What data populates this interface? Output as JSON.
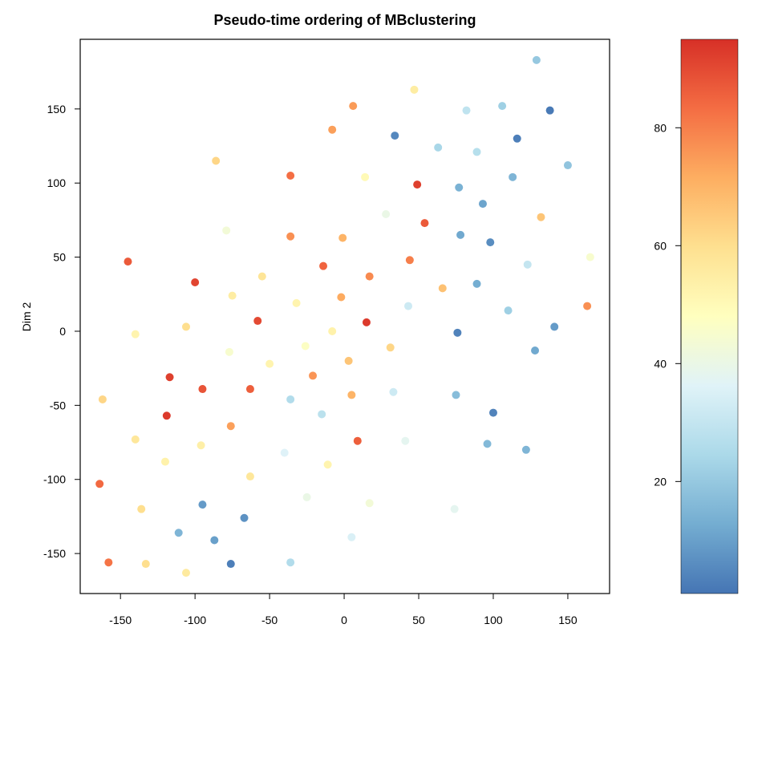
{
  "chart_data": {
    "type": "scatter",
    "title": "Pseudo-time ordering of MBclustering",
    "xlabel": "",
    "ylabel": "Dim 2",
    "xlim": [
      -177,
      178
    ],
    "ylim": [
      -177,
      197
    ],
    "xticks": [
      -150,
      -100,
      -50,
      0,
      50,
      100,
      150
    ],
    "yticks": [
      -150,
      -100,
      -50,
      0,
      50,
      100,
      150
    ],
    "grid": false,
    "colorbar": {
      "range": [
        1,
        95
      ],
      "ticks": [
        20,
        40,
        60,
        80
      ],
      "colors": [
        "#4575b4",
        "#74add1",
        "#abd9e9",
        "#e0f3f8",
        "#ffffbf",
        "#fee090",
        "#fdae61",
        "#f46d43",
        "#d73027"
      ]
    },
    "points": [
      {
        "x": 129,
        "y": 183,
        "t": 20
      },
      {
        "x": 47,
        "y": 163,
        "t": 55
      },
      {
        "x": 6,
        "y": 152,
        "t": 75
      },
      {
        "x": 82,
        "y": 149,
        "t": 29
      },
      {
        "x": 106,
        "y": 152,
        "t": 22
      },
      {
        "x": 138,
        "y": 149,
        "t": 2
      },
      {
        "x": -8,
        "y": 136,
        "t": 74
      },
      {
        "x": 34,
        "y": 132,
        "t": 5
      },
      {
        "x": 116,
        "y": 130,
        "t": 3
      },
      {
        "x": 63,
        "y": 124,
        "t": 24
      },
      {
        "x": 89,
        "y": 121,
        "t": 27
      },
      {
        "x": -86,
        "y": 115,
        "t": 62
      },
      {
        "x": 150,
        "y": 112,
        "t": 19
      },
      {
        "x": -36,
        "y": 105,
        "t": 83
      },
      {
        "x": 14,
        "y": 104,
        "t": 50
      },
      {
        "x": 113,
        "y": 104,
        "t": 15
      },
      {
        "x": 49,
        "y": 99,
        "t": 92
      },
      {
        "x": 77,
        "y": 97,
        "t": 14
      },
      {
        "x": 93,
        "y": 86,
        "t": 11
      },
      {
        "x": 28,
        "y": 79,
        "t": 40
      },
      {
        "x": 132,
        "y": 77,
        "t": 66
      },
      {
        "x": 54,
        "y": 73,
        "t": 87
      },
      {
        "x": -79,
        "y": 68,
        "t": 43
      },
      {
        "x": -36,
        "y": 64,
        "t": 77
      },
      {
        "x": -1,
        "y": 63,
        "t": 70
      },
      {
        "x": 78,
        "y": 65,
        "t": 12
      },
      {
        "x": 98,
        "y": 60,
        "t": 6
      },
      {
        "x": 165,
        "y": 50,
        "t": 45
      },
      {
        "x": -145,
        "y": 47,
        "t": 87
      },
      {
        "x": 44,
        "y": 48,
        "t": 80
      },
      {
        "x": -14,
        "y": 44,
        "t": 85
      },
      {
        "x": 123,
        "y": 45,
        "t": 30
      },
      {
        "x": -55,
        "y": 37,
        "t": 58
      },
      {
        "x": 17,
        "y": 37,
        "t": 78
      },
      {
        "x": -100,
        "y": 33,
        "t": 91
      },
      {
        "x": 89,
        "y": 32,
        "t": 13
      },
      {
        "x": 66,
        "y": 29,
        "t": 67
      },
      {
        "x": -75,
        "y": 24,
        "t": 55
      },
      {
        "x": -2,
        "y": 23,
        "t": 72
      },
      {
        "x": -32,
        "y": 19,
        "t": 52
      },
      {
        "x": 43,
        "y": 17,
        "t": 32
      },
      {
        "x": 110,
        "y": 14,
        "t": 22
      },
      {
        "x": 163,
        "y": 17,
        "t": 77
      },
      {
        "x": -58,
        "y": 7,
        "t": 90
      },
      {
        "x": 15,
        "y": 6,
        "t": 93
      },
      {
        "x": -106,
        "y": 3,
        "t": 60
      },
      {
        "x": 141,
        "y": 3,
        "t": 9
      },
      {
        "x": -8,
        "y": 0,
        "t": 53
      },
      {
        "x": -140,
        "y": -2,
        "t": 52
      },
      {
        "x": 76,
        "y": -1,
        "t": 4
      },
      {
        "x": -26,
        "y": -10,
        "t": 47
      },
      {
        "x": 31,
        "y": -11,
        "t": 62
      },
      {
        "x": -77,
        "y": -14,
        "t": 45
      },
      {
        "x": 128,
        "y": -13,
        "t": 12
      },
      {
        "x": 3,
        "y": -20,
        "t": 66
      },
      {
        "x": -50,
        "y": -22,
        "t": 52
      },
      {
        "x": -21,
        "y": -30,
        "t": 76
      },
      {
        "x": -117,
        "y": -31,
        "t": 92
      },
      {
        "x": -95,
        "y": -39,
        "t": 88
      },
      {
        "x": -63,
        "y": -39,
        "t": 86
      },
      {
        "x": 5,
        "y": -43,
        "t": 70
      },
      {
        "x": 33,
        "y": -41,
        "t": 32
      },
      {
        "x": 75,
        "y": -43,
        "t": 17
      },
      {
        "x": -162,
        "y": -46,
        "t": 62
      },
      {
        "x": -36,
        "y": -46,
        "t": 26
      },
      {
        "x": 100,
        "y": -55,
        "t": 4
      },
      {
        "x": -15,
        "y": -56,
        "t": 28
      },
      {
        "x": -119,
        "y": -57,
        "t": 93
      },
      {
        "x": -76,
        "y": -64,
        "t": 74
      },
      {
        "x": 9,
        "y": -74,
        "t": 86
      },
      {
        "x": -140,
        "y": -73,
        "t": 57
      },
      {
        "x": 41,
        "y": -74,
        "t": 38
      },
      {
        "x": 96,
        "y": -76,
        "t": 16
      },
      {
        "x": -96,
        "y": -77,
        "t": 54
      },
      {
        "x": 122,
        "y": -80,
        "t": 15
      },
      {
        "x": -40,
        "y": -82,
        "t": 36
      },
      {
        "x": -120,
        "y": -88,
        "t": 53
      },
      {
        "x": -11,
        "y": -90,
        "t": 52
      },
      {
        "x": -63,
        "y": -98,
        "t": 57
      },
      {
        "x": -164,
        "y": -103,
        "t": 84
      },
      {
        "x": -25,
        "y": -112,
        "t": 40
      },
      {
        "x": 17,
        "y": -116,
        "t": 43
      },
      {
        "x": -95,
        "y": -117,
        "t": 9
      },
      {
        "x": -136,
        "y": -120,
        "t": 60
      },
      {
        "x": 74,
        "y": -120,
        "t": 38
      },
      {
        "x": -67,
        "y": -126,
        "t": 7
      },
      {
        "x": -111,
        "y": -136,
        "t": 15
      },
      {
        "x": 5,
        "y": -139,
        "t": 35
      },
      {
        "x": -87,
        "y": -141,
        "t": 10
      },
      {
        "x": -158,
        "y": -156,
        "t": 82
      },
      {
        "x": -36,
        "y": -156,
        "t": 26
      },
      {
        "x": -133,
        "y": -157,
        "t": 60
      },
      {
        "x": -76,
        "y": -157,
        "t": 3
      },
      {
        "x": -106,
        "y": -163,
        "t": 56
      }
    ]
  }
}
